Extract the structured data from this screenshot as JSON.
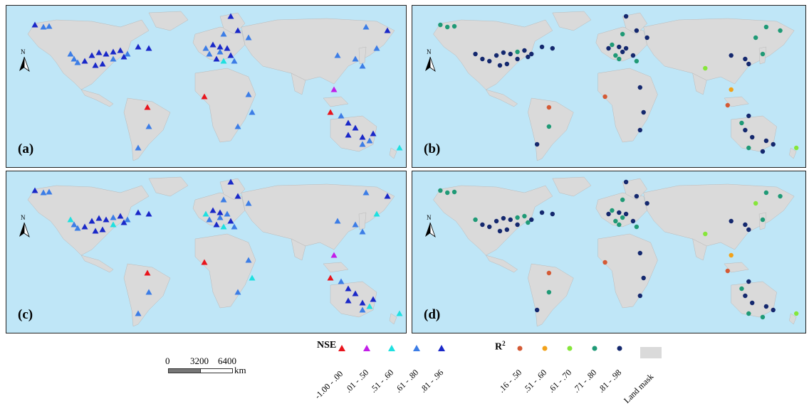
{
  "panels": [
    {
      "label": "(a)",
      "metric": "NSE"
    },
    {
      "label": "(b)",
      "metric": "R2"
    },
    {
      "label": "(c)",
      "metric": "NSE"
    },
    {
      "label": "(d)",
      "metric": "R2"
    }
  ],
  "north_arrow_label": "N",
  "scale_bar": {
    "ticks": [
      "0",
      "3200",
      "6400"
    ],
    "unit": "km"
  },
  "legend_nse": {
    "title": "NSE",
    "items": [
      {
        "label": "-1.00 - .00",
        "color": "#e8141c"
      },
      {
        "label": ".01 - .50",
        "color": "#c21ee8"
      },
      {
        "label": ".51 - .60",
        "color": "#1fe0e0"
      },
      {
        "label": ".61 - .80",
        "color": "#3c7de6"
      },
      {
        "label": ".81 - .96",
        "color": "#1a28c8"
      }
    ]
  },
  "legend_r2": {
    "title": "R",
    "title_sup": "2",
    "items": [
      {
        "label": ".16 - .50",
        "color": "#d45a35"
      },
      {
        "label": ".51 - .60",
        "color": "#f2a21a"
      },
      {
        "label": ".61 - .70",
        "color": "#86e63a"
      },
      {
        "label": ".71 - .80",
        "color": "#1f9a76"
      },
      {
        "label": ".81 - .98",
        "color": "#14286e"
      }
    ]
  },
  "land_mask_label": "Land mask",
  "colors": {
    "ocean": "#bfe6f7",
    "land": "#dadada"
  }
}
